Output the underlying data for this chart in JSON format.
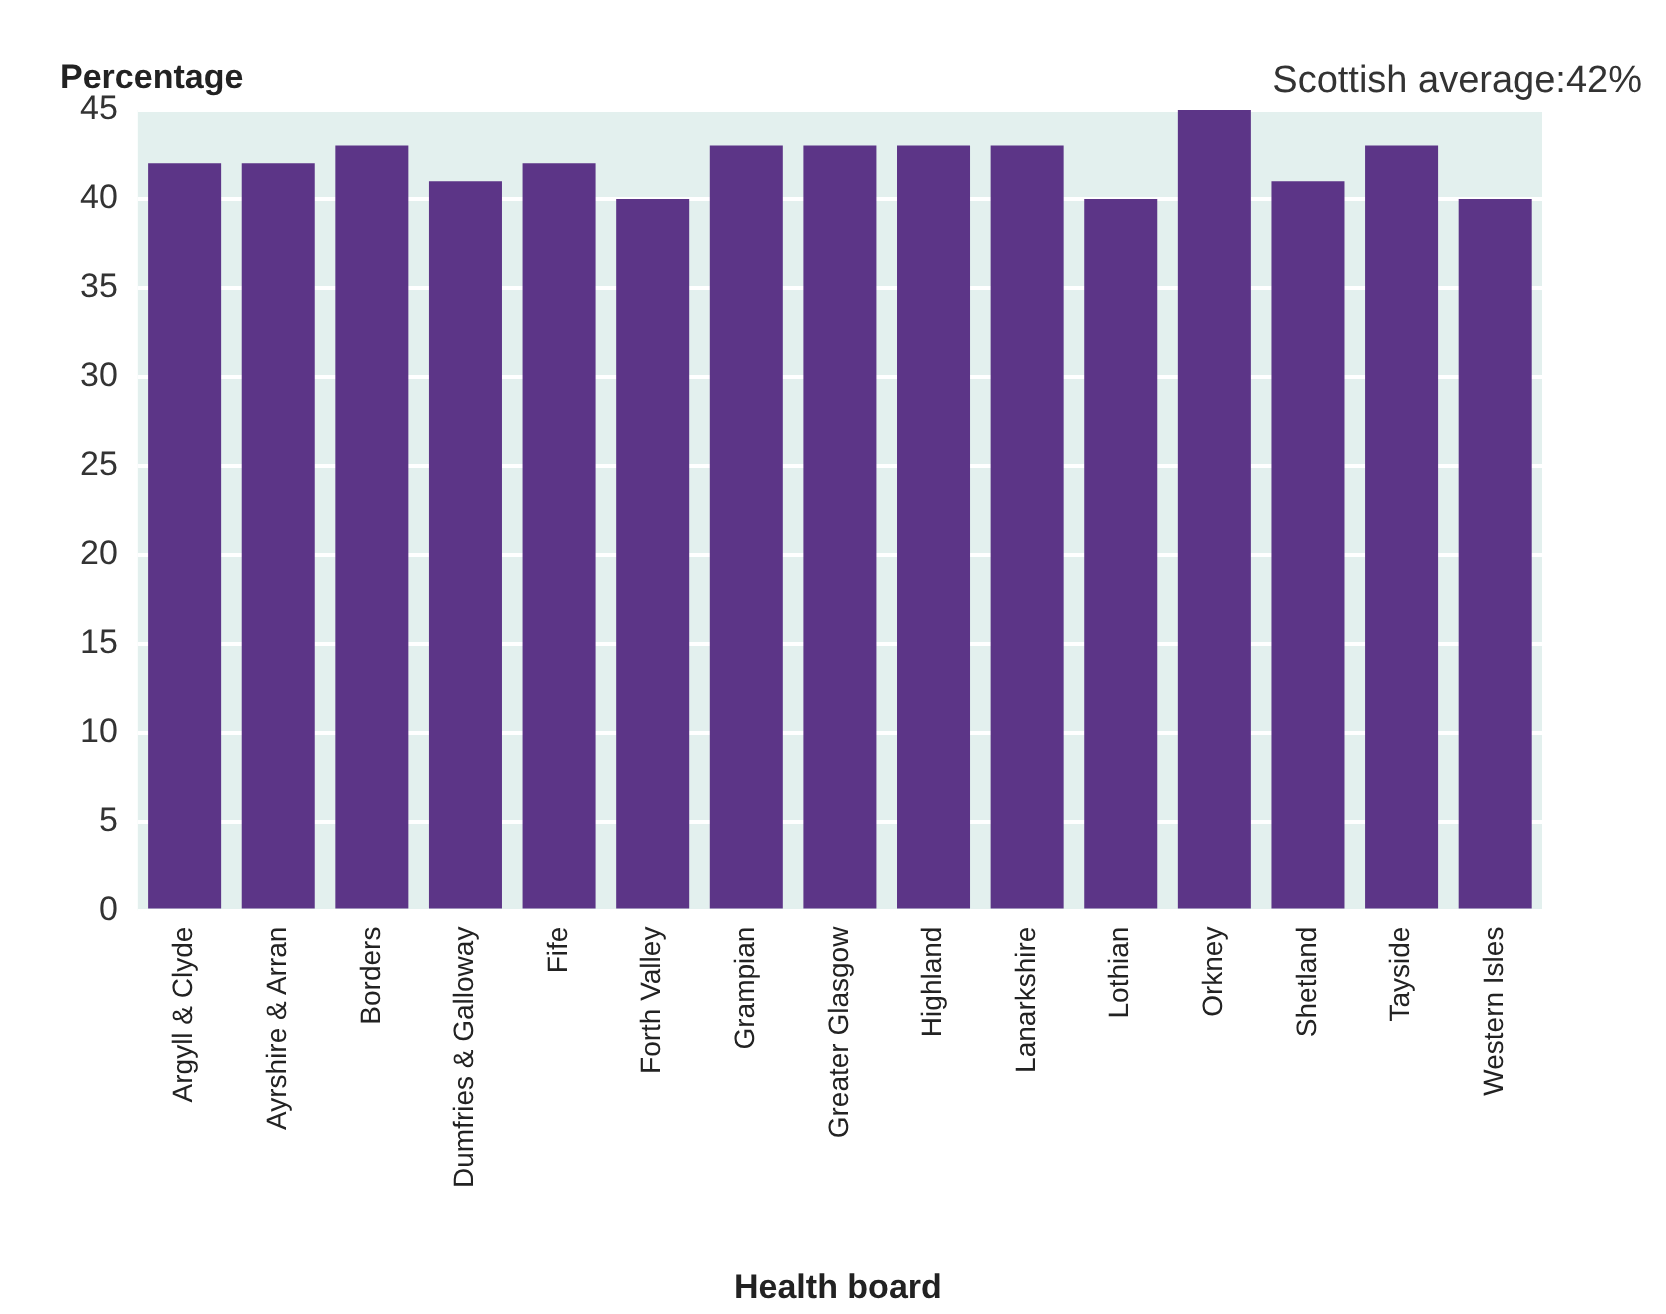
{
  "chart_data": {
    "type": "bar",
    "xlabel": "Health board",
    "ylabel": "Percentage",
    "annotations": [
      "Scottish average:42%"
    ],
    "categories": [
      "Argyll & Clyde",
      "Ayrshire & Arran",
      "Borders",
      "Dumfries & Galloway",
      "Fife",
      "Forth Valley",
      "Grampian",
      "Greater Glasgow",
      "Highland",
      "Lanarkshire",
      "Lothian",
      "Orkney",
      "Shetland",
      "Tayside",
      "Western Isles"
    ],
    "values": [
      42,
      42,
      43,
      41,
      42,
      40,
      43,
      43,
      43,
      43,
      40,
      45,
      41,
      43,
      40
    ],
    "color": "#5c3587",
    "ylim": [
      0,
      45
    ],
    "yticks": [
      0,
      5,
      10,
      15,
      20,
      25,
      30,
      35,
      40,
      45
    ],
    "grid": "y",
    "legend": false
  }
}
